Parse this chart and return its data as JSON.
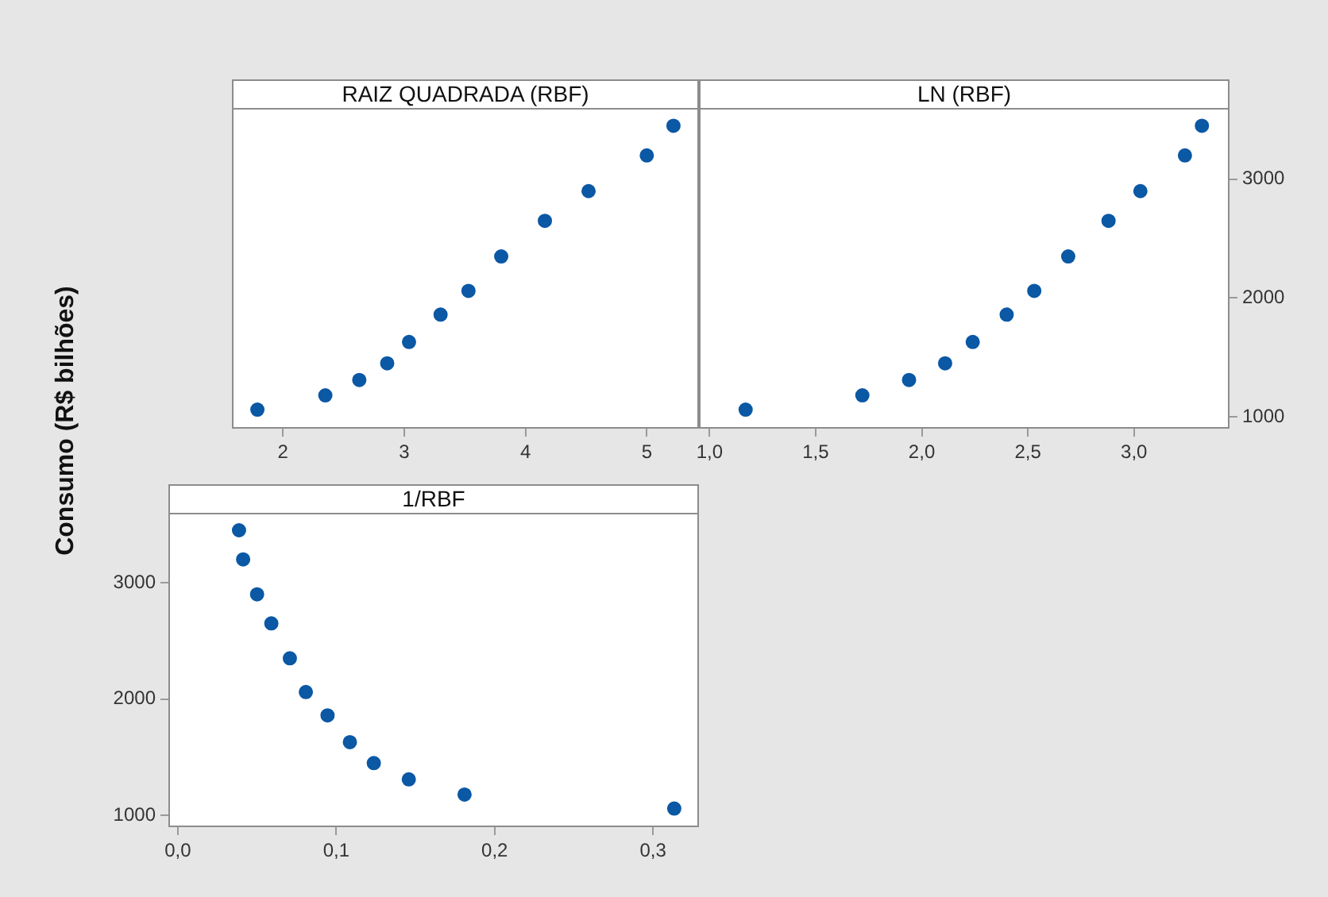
{
  "chart_data": [
    {
      "type": "scatter",
      "title": "RAIZ QUADRADA (RBF)",
      "ylabel": "Consumo (R$ bilhões)",
      "x": [
        1.79,
        2.35,
        2.63,
        2.86,
        3.04,
        3.3,
        3.53,
        3.8,
        4.16,
        4.52,
        5.0,
        5.22
      ],
      "series": [
        {
          "color": "#0b58a5",
          "values": [
            1060,
            1180,
            1310,
            1450,
            1630,
            1860,
            2060,
            2350,
            2650,
            2900,
            3200,
            3450
          ]
        }
      ],
      "xlim": [
        1.58,
        5.43
      ],
      "xticks": [
        2,
        3,
        4,
        5
      ],
      "ylim": [
        900,
        3600
      ],
      "tick_labels": "x",
      "marker": "circle",
      "legend": false
    },
    {
      "type": "scatter",
      "title": "LN (RBF)",
      "x": [
        1.17,
        1.72,
        1.94,
        2.11,
        2.24,
        2.4,
        2.53,
        2.69,
        2.88,
        3.03,
        3.24,
        3.32
      ],
      "series": [
        {
          "color": "#0b58a5",
          "axis": "y2",
          "values": [
            1060,
            1180,
            1310,
            1450,
            1630,
            1860,
            2060,
            2350,
            2650,
            2900,
            3200,
            3450
          ]
        }
      ],
      "xlim": [
        0.95,
        3.45
      ],
      "xticks": [
        {
          "value": 1,
          "label": "1,0"
        },
        {
          "value": 1.5,
          "label": "1,5"
        },
        {
          "value": 2,
          "label": "2,0"
        },
        {
          "value": 2.5,
          "label": "2,5"
        },
        {
          "value": 3,
          "label": "3,0"
        }
      ],
      "y2lim": [
        900,
        3600
      ],
      "y2ticks": [
        1000,
        2000,
        3000
      ],
      "marker": "circle",
      "legend": false
    },
    {
      "type": "scatter",
      "title": "1/RBF",
      "x": [
        0.0386,
        0.0412,
        0.05,
        0.059,
        0.0707,
        0.0808,
        0.0945,
        0.1086,
        0.1237,
        0.1458,
        0.181,
        0.3134
      ],
      "series": [
        {
          "color": "#0b58a5",
          "values": [
            3450,
            3200,
            2900,
            2650,
            2350,
            2060,
            1860,
            1630,
            1450,
            1310,
            1180,
            1060
          ]
        }
      ],
      "xlim": [
        -0.006,
        0.329
      ],
      "xticks": [
        {
          "value": 0,
          "label": "0,0"
        },
        {
          "value": 0.1,
          "label": "0,1"
        },
        {
          "value": 0.2,
          "label": "0,2"
        },
        {
          "value": 0.3,
          "label": "0,3"
        }
      ],
      "ylim": [
        900,
        3600
      ],
      "yticks": [
        1000,
        2000,
        3000
      ],
      "marker": "circle",
      "legend": false
    }
  ]
}
